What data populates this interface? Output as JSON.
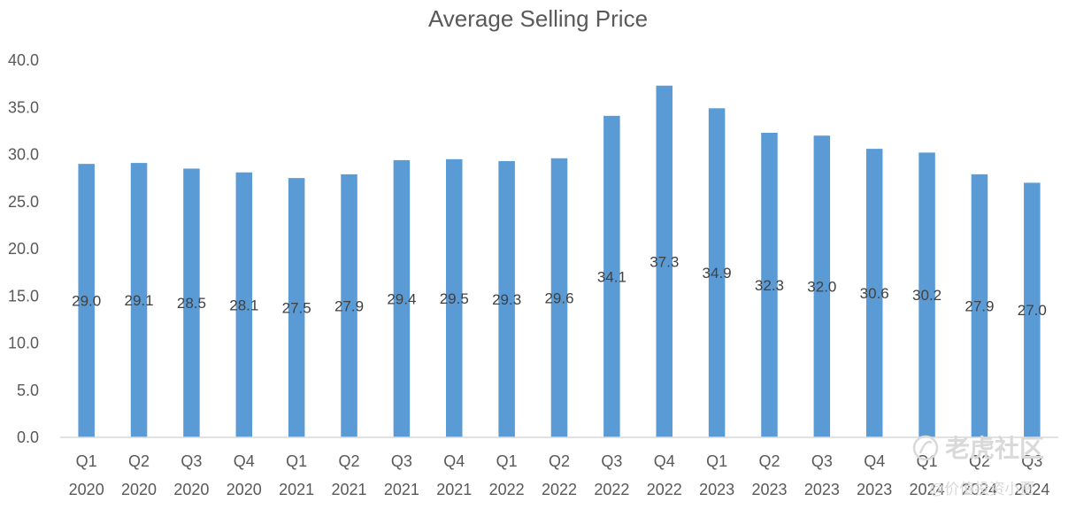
{
  "chart_data": {
    "type": "bar",
    "title": "Average Selling Price",
    "xlabel": "",
    "ylabel": "",
    "ylim": [
      0,
      40
    ],
    "yticks": [
      "0.0",
      "5.0",
      "10.0",
      "15.0",
      "20.0",
      "25.0",
      "30.0",
      "35.0",
      "40.0"
    ],
    "grid": false,
    "bar_color": "#5b9bd5",
    "categories": [
      {
        "quarter": "Q1",
        "year": "2020"
      },
      {
        "quarter": "Q2",
        "year": "2020"
      },
      {
        "quarter": "Q3",
        "year": "2020"
      },
      {
        "quarter": "Q4",
        "year": "2020"
      },
      {
        "quarter": "Q1",
        "year": "2021"
      },
      {
        "quarter": "Q2",
        "year": "2021"
      },
      {
        "quarter": "Q3",
        "year": "2021"
      },
      {
        "quarter": "Q4",
        "year": "2021"
      },
      {
        "quarter": "Q1",
        "year": "2022"
      },
      {
        "quarter": "Q2",
        "year": "2022"
      },
      {
        "quarter": "Q3",
        "year": "2022"
      },
      {
        "quarter": "Q4",
        "year": "2022"
      },
      {
        "quarter": "Q1",
        "year": "2023"
      },
      {
        "quarter": "Q2",
        "year": "2023"
      },
      {
        "quarter": "Q3",
        "year": "2023"
      },
      {
        "quarter": "Q4",
        "year": "2023"
      },
      {
        "quarter": "Q1",
        "year": "2024"
      },
      {
        "quarter": "Q2",
        "year": "2024"
      },
      {
        "quarter": "Q3",
        "year": "2024"
      }
    ],
    "values": [
      29.0,
      29.1,
      28.5,
      28.1,
      27.5,
      27.9,
      29.4,
      29.5,
      29.3,
      29.6,
      34.1,
      37.3,
      34.9,
      32.3,
      32.0,
      30.6,
      30.2,
      27.9,
      27.0
    ],
    "data_labels": [
      "29.0",
      "29.1",
      "28.5",
      "28.1",
      "27.5",
      "27.9",
      "29.4",
      "29.5",
      "29.3",
      "29.6",
      "34.1",
      "37.3",
      "34.9",
      "32.3",
      "32.0",
      "30.6",
      "30.2",
      "27.9",
      "27.0"
    ]
  },
  "watermark": {
    "logo_text": "老虎社区",
    "sub_text": "@价值投资小贾"
  }
}
